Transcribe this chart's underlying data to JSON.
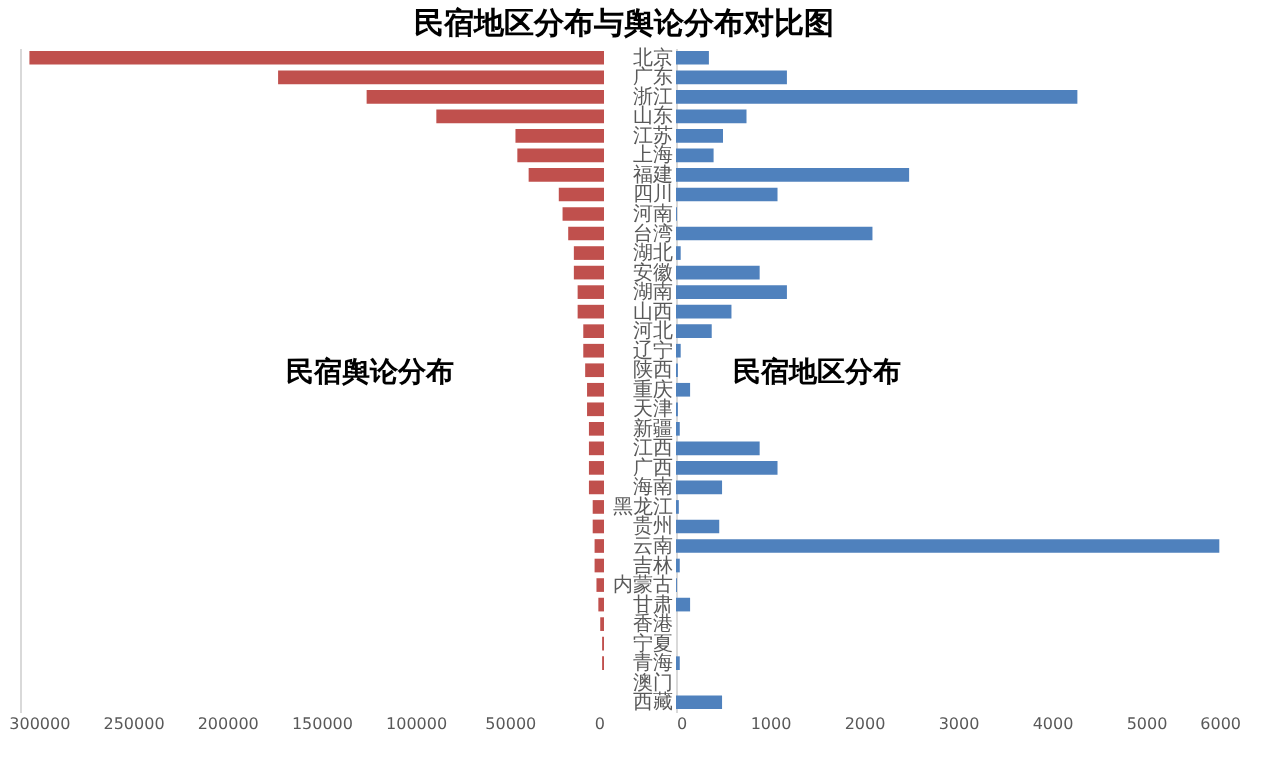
{
  "chart_data": [
    {
      "type": "bar",
      "orientation": "horizontal",
      "title": "民宿地区分布与舆论分布对比图",
      "annotations": [
        "民宿舆论分布"
      ],
      "tick_labels": "x",
      "grid": false,
      "categories": [
        null,
        null,
        null,
        null,
        null,
        null,
        null,
        null,
        null,
        null,
        null,
        null,
        null,
        null,
        null,
        null,
        null,
        null,
        null,
        null,
        null,
        null,
        null,
        null,
        null,
        null,
        null,
        null,
        null,
        null,
        null,
        null,
        null,
        null
      ],
      "series": [
        {
          "color": "#c0504d",
          "values": [
            305000,
            173000,
            126000,
            89000,
            47000,
            46000,
            40000,
            24000,
            22000,
            19000,
            16000,
            16000,
            14000,
            14000,
            11000,
            11000,
            10000,
            9000,
            9000,
            8000,
            8000,
            8000,
            8000,
            6000,
            6000,
            5000,
            5000,
            4000,
            3000,
            2000,
            1000,
            1000,
            0,
            0
          ]
        }
      ],
      "xlim": [
        310000,
        0
      ],
      "xticks": [
        300000,
        250000,
        200000,
        150000,
        100000,
        50000,
        0
      ]
    },
    {
      "type": "bar",
      "orientation": "horizontal",
      "annotations": [
        "民宿地区分布"
      ],
      "grid": false,
      "categories": [
        "北京",
        "广东",
        "浙江",
        "山东",
        "江苏",
        "上海",
        "福建",
        "四川",
        "河南",
        "台湾",
        "湖北",
        "安徽",
        "湖南",
        "山西",
        "河北",
        "辽宁",
        "陕西",
        "重庆",
        "天津",
        "新疆",
        "江西",
        "广西",
        "海南",
        "黑龙江",
        "贵州",
        "云南",
        "吉林",
        "内蒙古",
        "甘肃",
        "香港",
        "宁夏",
        "青海",
        "澳门",
        "西藏"
      ],
      "series": [
        {
          "color": "#4f81bd",
          "values": [
            350,
            1180,
            4270,
            750,
            500,
            400,
            2480,
            1080,
            10,
            2090,
            50,
            890,
            1180,
            590,
            380,
            50,
            20,
            150,
            20,
            40,
            890,
            1080,
            490,
            30,
            460,
            5780,
            40,
            10,
            150,
            0,
            0,
            40,
            0,
            490
          ]
        }
      ],
      "xlim": [
        0,
        6000
      ],
      "xticks": [
        0,
        1000,
        2000,
        3000,
        4000,
        5000,
        6000
      ]
    }
  ]
}
